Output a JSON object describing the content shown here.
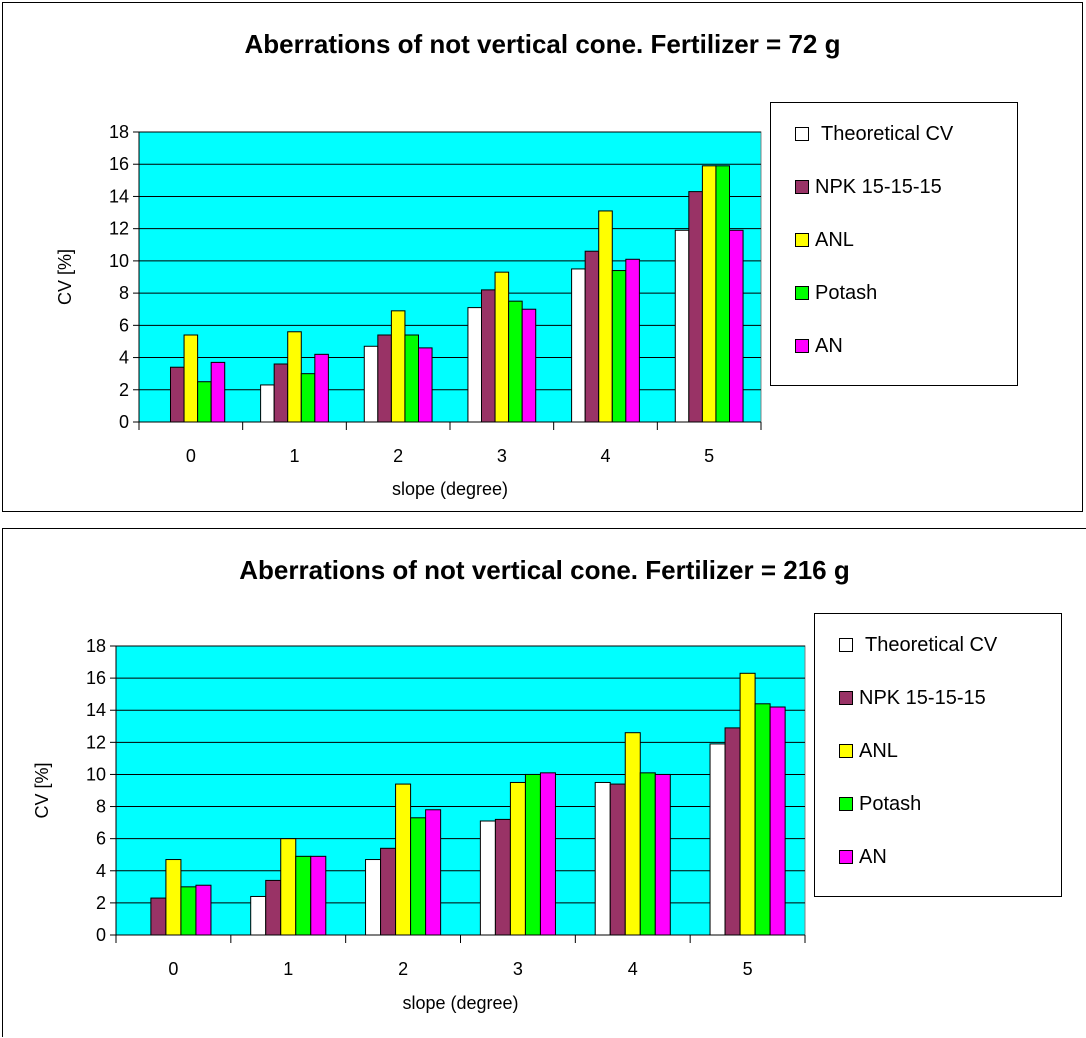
{
  "colors": {
    "plot_bg": "#00ffff",
    "series": [
      "#ffffff",
      "#993366",
      "#ffff00",
      "#00ff00",
      "#ff00ff"
    ]
  },
  "chart_data": [
    {
      "type": "bar",
      "title": "Aberrations of not vertical cone. Fertilizer = 72 g",
      "xlabel": "slope (degree)",
      "ylabel": "CV [%]",
      "ylim": [
        0,
        18
      ],
      "yticks": [
        "0",
        "2",
        "4",
        "6",
        "8",
        "10",
        "12",
        "14",
        "16",
        "18"
      ],
      "categories": [
        "0",
        "1",
        "2",
        "3",
        "4",
        "5"
      ],
      "grid": true,
      "legend_position": "right",
      "series": [
        {
          "name": "Theoretical CV",
          "values": [
            0,
            2.3,
            4.7,
            7.1,
            9.5,
            11.9
          ]
        },
        {
          "name": "NPK 15-15-15",
          "values": [
            3.4,
            3.6,
            5.4,
            8.2,
            10.6,
            14.3
          ]
        },
        {
          "name": "ANL",
          "values": [
            5.4,
            5.6,
            6.9,
            9.3,
            13.1,
            15.9
          ]
        },
        {
          "name": "Potash",
          "values": [
            2.5,
            3.0,
            5.4,
            7.5,
            9.4,
            15.9
          ]
        },
        {
          "name": "AN",
          "values": [
            3.7,
            4.2,
            4.6,
            7.0,
            10.1,
            11.9
          ]
        }
      ]
    },
    {
      "type": "bar",
      "title": "Aberrations of not vertical cone. Fertilizer = 216 g",
      "xlabel": "slope (degree)",
      "ylabel": "CV [%]",
      "ylim": [
        0,
        18
      ],
      "yticks": [
        "0",
        "2",
        "4",
        "6",
        "8",
        "10",
        "12",
        "14",
        "16",
        "18"
      ],
      "categories": [
        "0",
        "1",
        "2",
        "3",
        "4",
        "5"
      ],
      "grid": true,
      "legend_position": "right",
      "series": [
        {
          "name": "Theoretical CV",
          "values": [
            0,
            2.4,
            4.7,
            7.1,
            9.5,
            11.9
          ]
        },
        {
          "name": "NPK 15-15-15",
          "values": [
            2.3,
            3.4,
            5.4,
            7.2,
            9.4,
            12.9
          ]
        },
        {
          "name": "ANL",
          "values": [
            4.7,
            6.0,
            9.4,
            9.5,
            12.6,
            16.3
          ]
        },
        {
          "name": "Potash",
          "values": [
            3.0,
            4.9,
            7.3,
            10.0,
            10.1,
            14.4
          ]
        },
        {
          "name": "AN",
          "values": [
            3.1,
            4.9,
            7.8,
            10.1,
            10.0,
            14.2
          ]
        }
      ]
    }
  ]
}
